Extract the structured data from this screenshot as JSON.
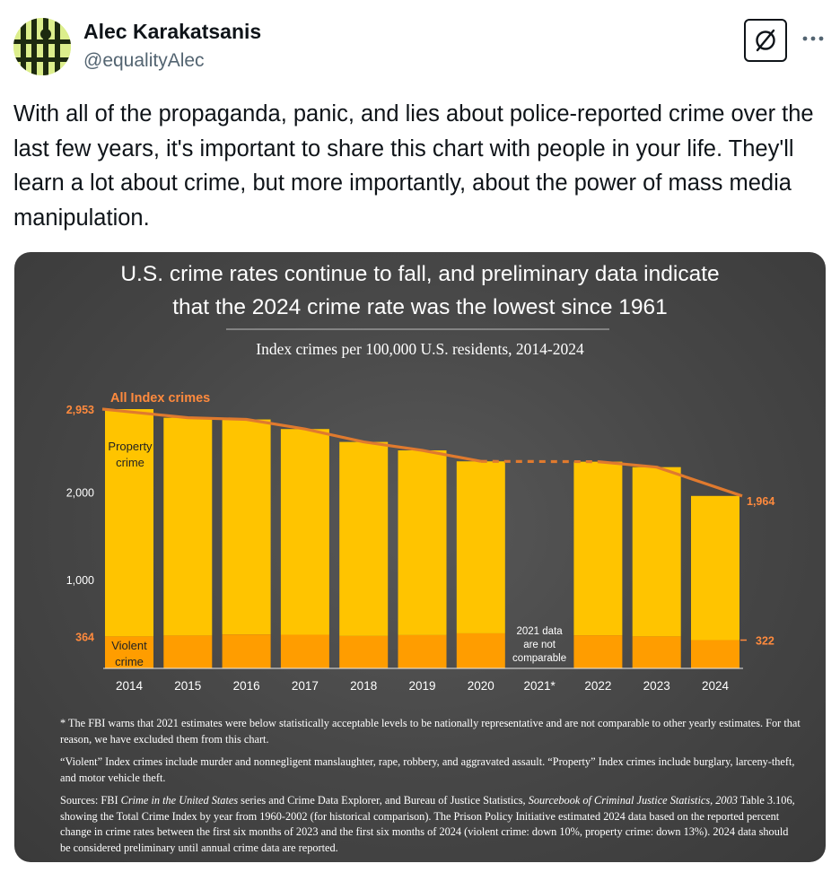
{
  "tweet": {
    "author_name": "Alec Karakatsanis",
    "author_handle": "@equalityAlec",
    "text": "With all of the propaganda, panic, and lies about police-reported crime over the last few years, it's important to share this chart with people in your life. They'll learn a lot about crime, but more importantly, about the power of mass media manipulation.",
    "icons": [
      "avatar",
      "grok-icon",
      "more-options-icon"
    ]
  },
  "chart_data": {
    "type": "bar",
    "title": "U.S. crime rates continue to fall, and preliminary data indicate that the 2024 crime rate was the lowest since 1961",
    "title_line1": "U.S. crime rates continue to fall, and preliminary data indicate",
    "title_line2": "that the 2024 crime rate was the lowest since 1961",
    "subtitle": "Index crimes per 100,000 U.S. residents, 2014-2024",
    "categories": [
      "2014",
      "2015",
      "2016",
      "2017",
      "2018",
      "2019",
      "2020",
      "2021*",
      "2022",
      "2023",
      "2024"
    ],
    "series": [
      {
        "name": "Violent crime",
        "values": [
          364,
          374,
          386,
          383,
          369,
          379,
          399,
          null,
          377,
          364,
          322
        ]
      },
      {
        "name": "Property crime",
        "values": [
          2589,
          2481,
          2449,
          2343,
          2210,
          2104,
          1959,
          null,
          1977,
          1928,
          1642
        ]
      }
    ],
    "all_index_crimes": [
      2953,
      2855,
      2835,
      2726,
      2579,
      2483,
      2358,
      null,
      2354,
      2292,
      1964
    ],
    "stacked": true,
    "ylim": [
      0,
      3100
    ],
    "yticks": [
      1000,
      2000
    ],
    "ytick_labels": [
      "1,000",
      "2,000"
    ],
    "labels": {
      "all_index": "All Index crimes",
      "property": "Property crime",
      "violent": "Violent crime",
      "start_total": "2,953",
      "end_total": "1,964",
      "start_violent": "364",
      "end_violent": "322",
      "gap_note": "2021 data are not comparable"
    },
    "colors": {
      "property": "#ffc400",
      "violent": "#ff9d00",
      "line": "#e07a2e",
      "label_orange": "#ff8a3d",
      "background": "#474747"
    },
    "grid": false,
    "legend": "direct labels"
  },
  "footnotes": {
    "note1": "* The FBI warns that 2021 estimates were below statistically acceptable levels to be nationally representative and are not comparable to other yearly estimates. For that reason, we have excluded them from this chart.",
    "note2": "“Violent” Index crimes include murder and nonnegligent manslaughter, rape, robbery, and aggravated assault. “Property” Index crimes include burglary, larceny-theft, and motor vehicle theft.",
    "sources_a": "Sources: FBI ",
    "sources_b": "Crime in the United States",
    "sources_c": " series and Crime Data Explorer, and Bureau of Justice Statistics, ",
    "sources_d": "Sourcebook of Criminal Justice Statistics, 2003",
    "sources_e": " Table 3.106, showing the Total Crime Index by year from 1960-2002 (for historical comparison). The Prison Policy Initiative estimated 2024 data based on the reported percent change in crime rates between the first six months of 2023 and the first six months of 2024 (violent crime: down 10%, property crime: down 13%). 2024 data should be considered preliminary until annual crime data are reported."
  }
}
